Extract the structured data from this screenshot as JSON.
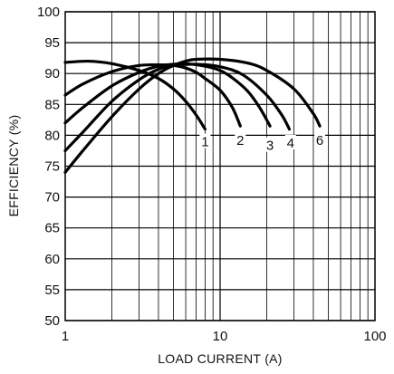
{
  "chart_data": {
    "type": "line",
    "title": "",
    "xlabel": "LOAD CURRENT (A)",
    "ylabel": "EFFICIENCY (%)",
    "xscale": "log",
    "xlim": [
      1,
      100
    ],
    "ylim": [
      50,
      100
    ],
    "grid": true,
    "legend": "none",
    "x_ticks": [
      "1",
      "10",
      "100"
    ],
    "y_ticks": [
      "50",
      "55",
      "60",
      "65",
      "70",
      "75",
      "80",
      "85",
      "90",
      "95",
      "100"
    ],
    "series": [
      {
        "name": "1",
        "x": [
          1,
          1.4,
          2,
          3,
          4,
          5,
          6,
          7,
          8
        ],
        "y": [
          91.8,
          92.0,
          91.6,
          90.5,
          89.2,
          87.5,
          85.5,
          83.3,
          81.0
        ]
      },
      {
        "name": "2",
        "x": [
          1,
          1.3,
          2,
          3,
          4,
          5,
          6,
          7,
          8,
          10,
          12,
          13.5
        ],
        "y": [
          86.5,
          88.3,
          90.3,
          91.3,
          91.4,
          91.3,
          90.9,
          90.2,
          89.2,
          87.3,
          84.5,
          81.5
        ]
      },
      {
        "name": "3",
        "x": [
          1,
          1.3,
          2,
          3,
          4,
          5,
          6,
          8,
          10,
          12,
          15,
          18,
          21
        ],
        "y": [
          82.0,
          84.5,
          88.0,
          90.2,
          91.2,
          91.5,
          91.6,
          91.2,
          90.5,
          89.3,
          87.2,
          84.5,
          81.5
        ]
      },
      {
        "name": "4",
        "x": [
          1,
          1.3,
          2,
          3,
          4,
          5,
          7,
          10,
          14,
          20,
          25,
          28
        ],
        "y": [
          77.5,
          80.5,
          85.5,
          89.0,
          90.7,
          91.3,
          91.5,
          91.1,
          89.8,
          86.5,
          83.3,
          81.0
        ]
      },
      {
        "name": "6",
        "x": [
          1,
          1.3,
          2,
          3,
          4,
          5,
          6,
          7,
          10,
          15,
          20,
          30,
          40,
          44
        ],
        "y": [
          74.0,
          77.5,
          83.0,
          87.5,
          90.0,
          91.3,
          92.0,
          92.3,
          92.3,
          91.7,
          90.5,
          87.5,
          83.5,
          81.5
        ]
      }
    ],
    "curve_labels": [
      {
        "text": "1",
        "x": 8.0,
        "y": 78.8
      },
      {
        "text": "2",
        "x": 13.5,
        "y": 79.0
      },
      {
        "text": "3",
        "x": 21.0,
        "y": 78.2
      },
      {
        "text": "4",
        "x": 28.5,
        "y": 78.6
      },
      {
        "text": "6",
        "x": 44.0,
        "y": 79.0
      }
    ]
  }
}
